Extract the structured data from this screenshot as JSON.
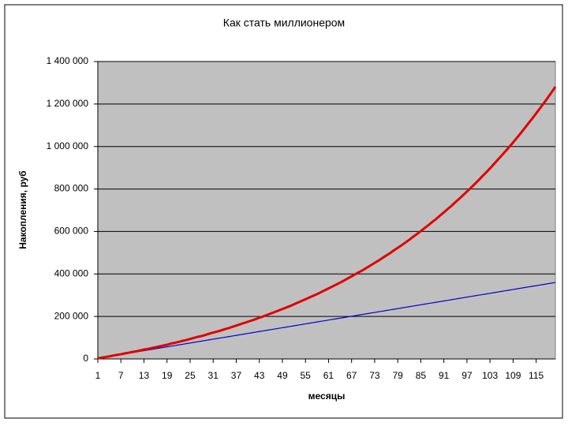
{
  "chart_data": {
    "type": "line",
    "title": "Как стать миллионером",
    "x_label": "месяцы",
    "y_label": "Накопления, руб",
    "categories": [
      1,
      null,
      null,
      null,
      null,
      null,
      7,
      null,
      null,
      null,
      null,
      null,
      13,
      null,
      null,
      null,
      null,
      null,
      19,
      null,
      null,
      null,
      null,
      null,
      25,
      null,
      null,
      null,
      null,
      null,
      31,
      null,
      null,
      null,
      null,
      null,
      37,
      null,
      null,
      null,
      null,
      null,
      43,
      null,
      null,
      null,
      null,
      null,
      49,
      null,
      null,
      null,
      null,
      null,
      55,
      null,
      null,
      null,
      null,
      null,
      61,
      null,
      null,
      null,
      null,
      null,
      67,
      null,
      null,
      null,
      null,
      null,
      73,
      null,
      null,
      null,
      null,
      null,
      79,
      null,
      null,
      null,
      null,
      null,
      85,
      null,
      null,
      null,
      null,
      null,
      91,
      null,
      null,
      null,
      null,
      null,
      97,
      null,
      null,
      null,
      null,
      null,
      103,
      null,
      null,
      null,
      null,
      null,
      109,
      null,
      null,
      null,
      null,
      null,
      115,
      null,
      null,
      null,
      null,
      null
    ],
    "series": [
      {
        "color": "#e00000",
        "values": [
          3000,
          6000,
          9000,
          12000,
          16000,
          19000,
          22000,
          26000,
          29000,
          33000,
          36000,
          40000,
          44000,
          47000,
          51000,
          55000,
          59000,
          63000,
          67000,
          72000,
          76000,
          80000,
          85000,
          89000,
          94000,
          99000,
          104000,
          108000,
          113000,
          119000,
          124000,
          129000,
          134000,
          140000,
          145000,
          151000,
          157000,
          163000,
          169000,
          175000,
          181000,
          187000,
          194000,
          200000,
          207000,
          214000,
          221000,
          228000,
          235000,
          242000,
          249000,
          257000,
          265000,
          273000,
          281000,
          289000,
          297000,
          305000,
          314000,
          323000,
          332000,
          341000,
          350000,
          359000,
          369000,
          379000,
          389000,
          399000,
          409000,
          419000,
          430000,
          441000,
          452000,
          463000,
          475000,
          487000,
          498000,
          511000,
          523000,
          535000,
          548000,
          561000,
          575000,
          588000,
          602000,
          616000,
          630000,
          645000,
          659000,
          675000,
          690000,
          706000,
          721000,
          738000,
          754000,
          771000,
          788000,
          805000,
          823000,
          841000,
          860000,
          878000,
          897000,
          917000,
          937000,
          957000,
          977000,
          998000,
          1019000,
          1041000,
          1063000,
          1086000,
          1109000,
          1132000,
          1156000,
          1180000,
          1204000,
          1229000,
          1255000,
          1281000
        ]
      },
      {
        "color": "#0000cc",
        "values": [
          3000,
          6000,
          9000,
          12000,
          15000,
          18000,
          21000,
          24000,
          27000,
          30000,
          33000,
          36000,
          39000,
          42000,
          45000,
          48000,
          51000,
          54000,
          57000,
          60000,
          63000,
          66000,
          69000,
          72000,
          75000,
          78000,
          81000,
          84000,
          87000,
          90000,
          93000,
          96000,
          99000,
          102000,
          105000,
          108000,
          111000,
          114000,
          117000,
          120000,
          123000,
          126000,
          129000,
          132000,
          135000,
          138000,
          141000,
          144000,
          147000,
          150000,
          153000,
          156000,
          159000,
          162000,
          165000,
          168000,
          171000,
          174000,
          177000,
          180000,
          183000,
          186000,
          189000,
          192000,
          195000,
          198000,
          201000,
          204000,
          207000,
          210000,
          213000,
          216000,
          219000,
          222000,
          225000,
          228000,
          231000,
          234000,
          237000,
          240000,
          243000,
          246000,
          249000,
          252000,
          255000,
          258000,
          261000,
          264000,
          267000,
          270000,
          273000,
          276000,
          279000,
          282000,
          285000,
          288000,
          291000,
          294000,
          297000,
          300000,
          303000,
          306000,
          309000,
          312000,
          315000,
          318000,
          321000,
          324000,
          327000,
          330000,
          333000,
          336000,
          339000,
          342000,
          345000,
          348000,
          351000,
          354000,
          357000,
          360000
        ]
      }
    ],
    "ylim": [
      0,
      1400000
    ],
    "yticks": [
      0,
      {
        "value": 200000,
        "label": "200 000"
      },
      {
        "value": 400000,
        "label": "400 000"
      },
      {
        "value": 600000,
        "label": "600 000"
      },
      {
        "value": 800000,
        "label": "800 000"
      },
      {
        "value": 1000000,
        "label": "1 000 000"
      },
      {
        "value": 1200000,
        "label": "1 200 000"
      },
      {
        "value": 1400000,
        "label": "1 400 000"
      }
    ],
    "grid": true,
    "plot_background": "#c0c0c0"
  }
}
